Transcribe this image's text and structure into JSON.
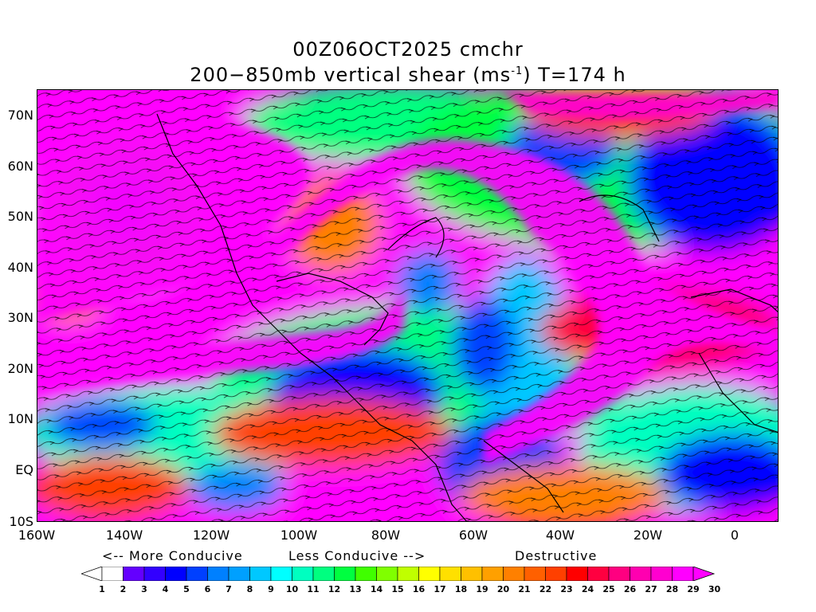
{
  "title": {
    "line1": "00Z06OCT2025 cmchr",
    "line2_pre": "200−850mb vertical shear (ms",
    "line2_sup": "-1",
    "line2_post": ") T=174 h"
  },
  "map": {
    "projection": "lat-lon",
    "lon_range": [
      "160W",
      "10E"
    ],
    "lat_range": [
      "10S",
      "75N"
    ],
    "coastlines": true,
    "streamlines": true,
    "color_scale_colors": [
      "#ffffff",
      "#6400ff",
      "#3200ff",
      "#0000ff",
      "#0040ff",
      "#0080ff",
      "#00a0ff",
      "#00c8ff",
      "#00ffff",
      "#00ffc0",
      "#00ff80",
      "#00ff40",
      "#40ff00",
      "#80ff00",
      "#c0ff00",
      "#ffff00",
      "#ffe000",
      "#ffc000",
      "#ffa000",
      "#ff8000",
      "#ff6000",
      "#ff4000",
      "#ff0000",
      "#ff0040",
      "#ff0080",
      "#ff00b0",
      "#ff00d0",
      "#ff00ff"
    ]
  },
  "y_axis": {
    "ticks": [
      "70N",
      "60N",
      "50N",
      "40N",
      "30N",
      "20N",
      "10N",
      "EQ",
      "10S"
    ]
  },
  "x_axis": {
    "ticks": [
      "160W",
      "140W",
      "120W",
      "100W",
      "80W",
      "60W",
      "40W",
      "20W",
      "0"
    ]
  },
  "legend": {
    "more_conducive": "<-- More Conducive",
    "less_conducive": "Less Conducive -->",
    "destructive": "Destructive",
    "values": [
      "1",
      "2",
      "3",
      "4",
      "5",
      "6",
      "7",
      "8",
      "9",
      "10",
      "11",
      "12",
      "13",
      "14",
      "15",
      "16",
      "17",
      "18",
      "19",
      "20",
      "21",
      "22",
      "23",
      "24",
      "25",
      "26",
      "27",
      "28",
      "29",
      "30"
    ]
  }
}
